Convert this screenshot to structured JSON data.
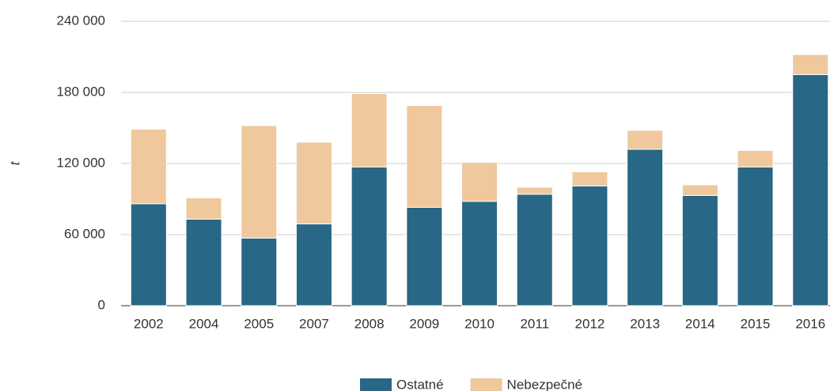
{
  "chart_data": {
    "type": "stacked_bar",
    "y_label": "t",
    "categories": [
      "2002",
      "2004",
      "2005",
      "2007",
      "2008",
      "2009",
      "2010",
      "2011",
      "2012",
      "2013",
      "2014",
      "2015",
      "2016"
    ],
    "series": [
      {
        "name": "Ostatné",
        "color": "#286785",
        "values": [
          86000,
          73000,
          57000,
          69000,
          117000,
          83000,
          88000,
          94000,
          101000,
          132000,
          93000,
          117000,
          195000
        ]
      },
      {
        "name": "Nebezpečné",
        "color": "#f0c89e",
        "values": [
          63000,
          18000,
          95000,
          69000,
          62000,
          86000,
          33000,
          6000,
          12000,
          16000,
          9000,
          14000,
          17000
        ]
      }
    ],
    "ylim": [
      0,
      240000
    ],
    "yticks": [
      0,
      {
        "value": 60000,
        "label": "60 000"
      },
      {
        "value": 120000,
        "label": "120 000"
      },
      {
        "value": 180000,
        "label": "180 000"
      },
      {
        "value": 240000,
        "label": "240 000"
      }
    ],
    "grid": true
  }
}
